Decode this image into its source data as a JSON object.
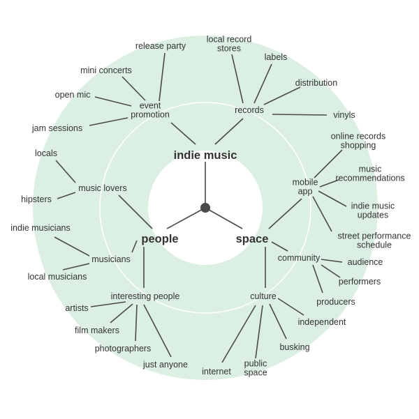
{
  "diagram": {
    "type": "radial-mind-map",
    "colors": {
      "ring": "#dcefe3",
      "line": "#4a4a4a",
      "hub": "#4a4a4a",
      "text": "#333333",
      "ring_stroke": "#ffffff"
    },
    "central": [
      {
        "id": "indie",
        "label": "indie music"
      },
      {
        "id": "people",
        "label": "people"
      },
      {
        "id": "space",
        "label": "space"
      }
    ],
    "nodes": [
      {
        "id": "event",
        "lines": [
          "event",
          "promotion"
        ]
      },
      {
        "id": "records",
        "lines": [
          "records"
        ]
      },
      {
        "id": "release",
        "lines": [
          "release party"
        ]
      },
      {
        "id": "mini",
        "lines": [
          "mini concerts"
        ]
      },
      {
        "id": "openmic",
        "lines": [
          "open mic"
        ]
      },
      {
        "id": "jam",
        "lines": [
          "jam sessions"
        ]
      },
      {
        "id": "localrec",
        "lines": [
          "local record",
          "stores"
        ]
      },
      {
        "id": "labels",
        "lines": [
          "labels"
        ]
      },
      {
        "id": "distribution",
        "lines": [
          "distribution"
        ]
      },
      {
        "id": "vinyls",
        "lines": [
          "vinyls"
        ]
      },
      {
        "id": "lovers",
        "lines": [
          "music lovers"
        ]
      },
      {
        "id": "locals",
        "lines": [
          "locals"
        ]
      },
      {
        "id": "hipsters",
        "lines": [
          "hipsters"
        ]
      },
      {
        "id": "musicians",
        "lines": [
          "musicians"
        ]
      },
      {
        "id": "indiemus",
        "lines": [
          "indie musicians"
        ]
      },
      {
        "id": "localmus",
        "lines": [
          "local musicians"
        ]
      },
      {
        "id": "interesting",
        "lines": [
          "interesting people"
        ]
      },
      {
        "id": "artists",
        "lines": [
          "artists"
        ]
      },
      {
        "id": "film",
        "lines": [
          "film makers"
        ]
      },
      {
        "id": "photo",
        "lines": [
          "photographers"
        ]
      },
      {
        "id": "anyone",
        "lines": [
          "just anyone"
        ]
      },
      {
        "id": "mobile",
        "lines": [
          "mobile",
          "app"
        ]
      },
      {
        "id": "online",
        "lines": [
          "online records",
          "shopping"
        ]
      },
      {
        "id": "recomm",
        "lines": [
          "music",
          "recommendations"
        ]
      },
      {
        "id": "updates",
        "lines": [
          "indie music",
          "updates"
        ]
      },
      {
        "id": "street",
        "lines": [
          "street performance",
          "schedule"
        ]
      },
      {
        "id": "community",
        "lines": [
          "community"
        ]
      },
      {
        "id": "audience",
        "lines": [
          "audience"
        ]
      },
      {
        "id": "performers",
        "lines": [
          "performers"
        ]
      },
      {
        "id": "producers",
        "lines": [
          "producers"
        ]
      },
      {
        "id": "culture",
        "lines": [
          "culture"
        ]
      },
      {
        "id": "independent",
        "lines": [
          "independent"
        ]
      },
      {
        "id": "busking",
        "lines": [
          "busking"
        ]
      },
      {
        "id": "public",
        "lines": [
          "public",
          "space"
        ]
      },
      {
        "id": "internet",
        "lines": [
          "internet"
        ]
      }
    ],
    "edges": [
      [
        "hub",
        "indie"
      ],
      [
        "hub",
        "people"
      ],
      [
        "hub",
        "space"
      ],
      [
        "indie",
        "event"
      ],
      [
        "indie",
        "records"
      ],
      [
        "event",
        "release"
      ],
      [
        "event",
        "mini"
      ],
      [
        "event",
        "openmic"
      ],
      [
        "event",
        "jam"
      ],
      [
        "records",
        "localrec"
      ],
      [
        "records",
        "labels"
      ],
      [
        "records",
        "distribution"
      ],
      [
        "records",
        "vinyls"
      ],
      [
        "people",
        "lovers"
      ],
      [
        "people",
        "musicians"
      ],
      [
        "people",
        "interesting"
      ],
      [
        "lovers",
        "locals"
      ],
      [
        "lovers",
        "hipsters"
      ],
      [
        "musicians",
        "indiemus"
      ],
      [
        "musicians",
        "localmus"
      ],
      [
        "interesting",
        "artists"
      ],
      [
        "interesting",
        "film"
      ],
      [
        "interesting",
        "photo"
      ],
      [
        "interesting",
        "anyone"
      ],
      [
        "space",
        "mobile"
      ],
      [
        "space",
        "community"
      ],
      [
        "space",
        "culture"
      ],
      [
        "mobile",
        "online"
      ],
      [
        "mobile",
        "recomm"
      ],
      [
        "mobile",
        "updates"
      ],
      [
        "mobile",
        "street"
      ],
      [
        "community",
        "audience"
      ],
      [
        "community",
        "performers"
      ],
      [
        "community",
        "producers"
      ],
      [
        "culture",
        "independent"
      ],
      [
        "culture",
        "busking"
      ],
      [
        "culture",
        "public"
      ],
      [
        "culture",
        "internet"
      ]
    ]
  }
}
